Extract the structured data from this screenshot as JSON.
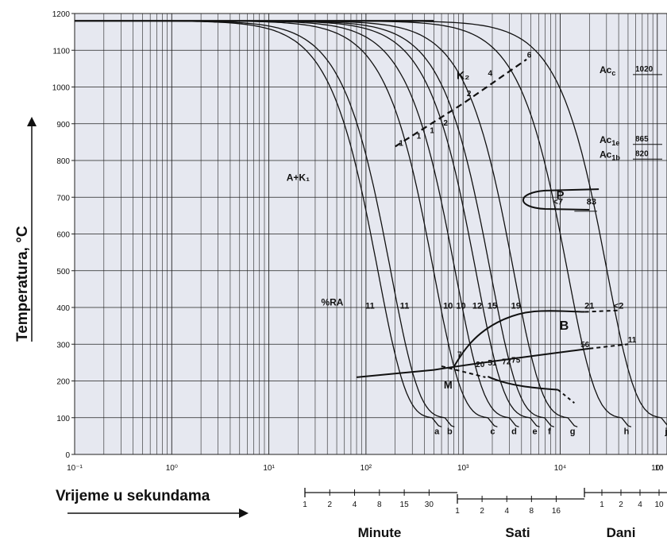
{
  "chart_data": {
    "type": "line",
    "xscale": "log",
    "xlim": [
      0.1,
      100000
    ],
    "ylim": [
      0,
      1200
    ],
    "xticks": [
      "10⁻¹",
      "10⁰",
      "10¹",
      "10²",
      "10³",
      "10⁴",
      "10⁵",
      "10"
    ],
    "yticks": [
      "0",
      "100",
      "200",
      "300",
      "400",
      "500",
      "600",
      "700",
      "800",
      "900",
      "1000",
      "1100",
      "1200"
    ],
    "ylabel": "Temperatura, °C",
    "xlabel": "Vrijeme u sekundama",
    "time_scales": [
      {
        "name": "Minute",
        "ticks": [
          "1",
          "2",
          "4",
          "8",
          "15",
          "30"
        ]
      },
      {
        "name": "Sati",
        "ticks": [
          "1",
          "2",
          "4",
          "8",
          "16"
        ]
      },
      {
        "name": "Dani",
        "ticks": [
          "1",
          "2",
          "4",
          "10"
        ]
      }
    ],
    "cooling_curves": [
      {
        "name": "a",
        "end_time": 480
      },
      {
        "name": "b",
        "end_time": 650
      },
      {
        "name": "c",
        "end_time": 1800
      },
      {
        "name": "d",
        "end_time": 3000
      },
      {
        "name": "e",
        "end_time": 4900
      },
      {
        "name": "f",
        "end_time": 6900
      },
      {
        "name": "g",
        "end_time": 12000
      },
      {
        "name": "h",
        "end_time": 43000
      },
      {
        "name": "j",
        "end_time": 110000
      }
    ],
    "region_labels": [
      "A+K₁",
      "K₂",
      "P",
      "B",
      "M",
      "%RA"
    ],
    "ra_values": [
      "11",
      "11",
      "10",
      "10",
      "12",
      "15",
      "19",
      "21",
      "<2"
    ],
    "k2_values": [
      "1",
      "1",
      "1",
      "2",
      "2",
      "4",
      "6"
    ],
    "b_values": [
      "7",
      "20",
      "51",
      "72",
      "75",
      "56",
      "11"
    ],
    "p_values": [
      "<7",
      "83"
    ],
    "critical_temps": [
      {
        "label": "Acc",
        "value": "1020"
      },
      {
        "label": "Ac1e",
        "value": "865"
      },
      {
        "label": "Ac1b",
        "value": "820"
      }
    ]
  }
}
